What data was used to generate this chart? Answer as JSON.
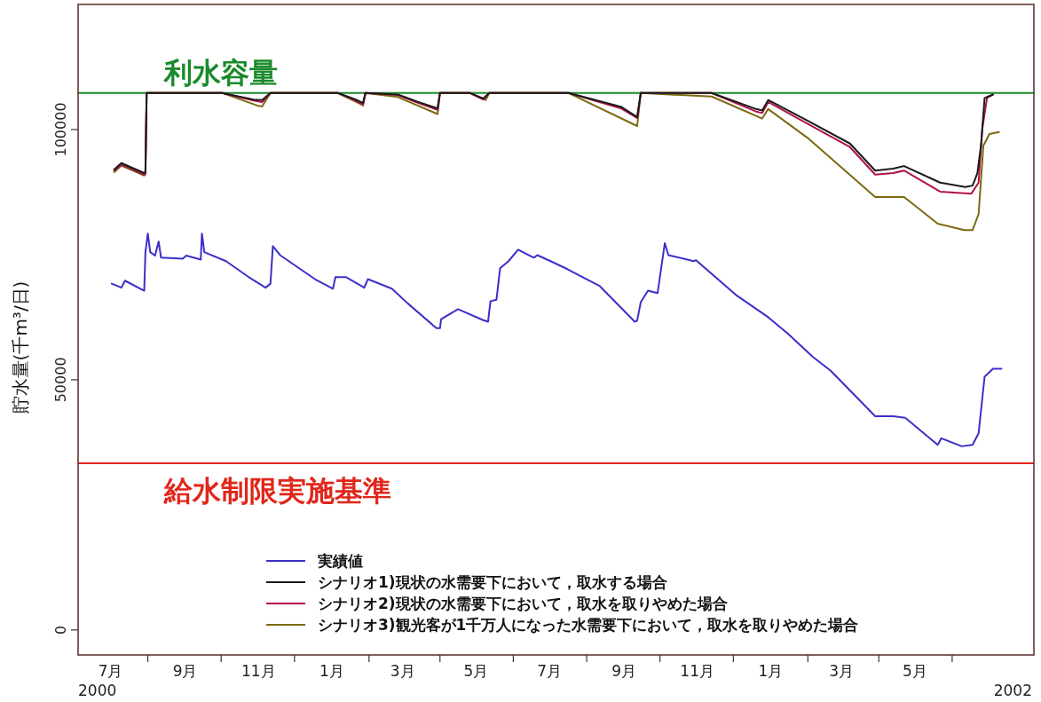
{
  "chart_data": {
    "type": "line",
    "ylabel": "貯水量(千m³/日)",
    "xlim": [
      "2000-06-04",
      "2002-08-08"
    ],
    "ylim": [
      -5000,
      125000
    ],
    "yticks": [
      0,
      50000,
      100000
    ],
    "annotations": [
      "2000",
      "2002"
    ],
    "xticks": [
      {
        "value": "2000-07-01",
        "label": "7月"
      },
      {
        "value": "2000-08-01",
        "label": null
      },
      {
        "value": "2000-09-01",
        "label": "9月"
      },
      {
        "value": "2000-10-01",
        "label": null
      },
      {
        "value": "2000-11-01",
        "label": "11月"
      },
      {
        "value": "2000-12-01",
        "label": null
      },
      {
        "value": "2001-01-01",
        "label": "1月"
      },
      {
        "value": "2001-02-01",
        "label": null
      },
      {
        "value": "2001-03-01",
        "label": "3月"
      },
      {
        "value": "2001-04-01",
        "label": null
      },
      {
        "value": "2001-05-01",
        "label": "5月"
      },
      {
        "value": "2001-06-01",
        "label": null
      },
      {
        "value": "2001-07-01",
        "label": "7月"
      },
      {
        "value": "2001-08-01",
        "label": null
      },
      {
        "value": "2001-09-01",
        "label": "9月"
      },
      {
        "value": "2001-10-01",
        "label": null
      },
      {
        "value": "2001-11-01",
        "label": "11月"
      },
      {
        "value": "2001-12-01",
        "label": null
      },
      {
        "value": "2002-01-01",
        "label": "1月"
      },
      {
        "value": "2002-02-01",
        "label": null
      },
      {
        "value": "2002-03-01",
        "label": "3月"
      },
      {
        "value": "2002-04-01",
        "label": null
      },
      {
        "value": "2002-05-01",
        "label": "5月"
      },
      {
        "value": "2002-06-01",
        "label": null
      }
    ],
    "grid": false,
    "legend": "bottom",
    "line_style": "solid",
    "ref_lines": [
      {
        "axis": "y",
        "value": 107300,
        "label": "利水容量",
        "color": "#1a8a2a"
      },
      {
        "axis": "y",
        "value": 33300,
        "label": "給水制限実施基準",
        "color": "#e0261a"
      }
    ],
    "series": [
      {
        "name": "実績値",
        "color": "#3b2fc9",
        "x": [
          "2000-07-02",
          "2000-07-10",
          "2000-07-13",
          "2000-07-29",
          "2000-07-30",
          "2000-08-01",
          "2000-08-03",
          "2000-08-07",
          "2000-08-10",
          "2000-08-12",
          "2000-08-30",
          "2000-09-02",
          "2000-09-14",
          "2000-09-15",
          "2000-09-17",
          "2000-10-05",
          "2000-10-24",
          "2000-11-07",
          "2000-11-11",
          "2000-11-13",
          "2000-11-19",
          "2000-12-18",
          "2001-01-02",
          "2001-01-04",
          "2001-01-13",
          "2001-01-28",
          "2001-01-31",
          "2001-02-20",
          "2001-03-05",
          "2001-03-29",
          "2001-04-01",
          "2001-04-02",
          "2001-04-16",
          "2001-05-07",
          "2001-05-11",
          "2001-05-13",
          "2001-05-18",
          "2001-05-21",
          "2001-05-28",
          "2001-06-05",
          "2001-06-18",
          "2001-06-21",
          "2001-07-02",
          "2001-07-16",
          "2001-07-27",
          "2001-08-12",
          "2001-09-10",
          "2001-09-12",
          "2001-09-15",
          "2001-09-21",
          "2001-09-29",
          "2001-10-05",
          "2001-10-08",
          "2001-10-29",
          "2001-10-31",
          "2001-12-04",
          "2001-12-30",
          "2002-01-15",
          "2002-02-05",
          "2002-02-20",
          "2002-03-29",
          "2002-04-13",
          "2002-04-23",
          "2002-05-20",
          "2002-05-23",
          "2002-06-09",
          "2002-06-18",
          "2002-06-23",
          "2002-06-28",
          "2002-07-05",
          "2002-07-12"
        ],
        "values": [
          69200,
          68400,
          69800,
          67800,
          75500,
          79200,
          75500,
          74800,
          77600,
          74400,
          74200,
          74800,
          74000,
          79200,
          75500,
          73700,
          70500,
          68400,
          69200,
          76700,
          74900,
          70100,
          68200,
          70500,
          70500,
          68400,
          70100,
          68200,
          65300,
          60300,
          60300,
          62100,
          64100,
          61900,
          61600,
          65700,
          66000,
          72300,
          73700,
          76000,
          74400,
          74900,
          73700,
          72100,
          70700,
          68700,
          61600,
          61800,
          65500,
          67800,
          67300,
          77300,
          74900,
          73700,
          73900,
          66800,
          62500,
          59300,
          54600,
          51800,
          42700,
          42700,
          42400,
          37000,
          38300,
          36700,
          37000,
          39300,
          50600,
          52200,
          52200
        ]
      },
      {
        "name": "シナリオ1)現状の水需要下において，取水する場合",
        "color": "#1a1a1a",
        "x": [
          "2000-07-04",
          "2000-07-10",
          "2000-07-29",
          "2000-07-30",
          "2000-07-31",
          "2000-10-02",
          "2000-10-28",
          "2000-11-04",
          "2000-11-11",
          "2001-01-06",
          "2001-01-21",
          "2001-01-27",
          "2001-01-29",
          "2001-02-25",
          "2001-03-13",
          "2001-03-29",
          "2001-03-30",
          "2001-04-01",
          "2001-04-26",
          "2001-05-07",
          "2001-05-12",
          "2001-07-17",
          "2001-08-30",
          "2001-09-12",
          "2001-09-15",
          "2001-11-13",
          "2001-12-20",
          "2001-12-25",
          "2001-12-30",
          "2002-02-02",
          "2002-03-08",
          "2002-03-29",
          "2002-04-13",
          "2002-04-22",
          "2002-05-22",
          "2002-06-12",
          "2002-06-18",
          "2002-06-22",
          "2002-06-25",
          "2002-06-28",
          "2002-07-05"
        ],
        "values": [
          92000,
          93300,
          91300,
          91500,
          107300,
          107300,
          106000,
          105900,
          107300,
          107300,
          106000,
          105300,
          107300,
          107000,
          105600,
          104300,
          104300,
          107300,
          107300,
          106200,
          107300,
          107300,
          104500,
          102500,
          107300,
          107300,
          104100,
          103800,
          105900,
          101600,
          97200,
          91800,
          92200,
          92700,
          89400,
          88500,
          88800,
          91300,
          96800,
          106300,
          107000
        ]
      },
      {
        "name": "シナリオ2)現状の水需要下において，取水を取りやめた場合",
        "color": "#b0124a",
        "x": [
          "2000-07-04",
          "2000-07-10",
          "2000-07-29",
          "2000-07-30",
          "2000-07-31",
          "2000-10-02",
          "2000-10-28",
          "2000-11-04",
          "2000-11-11",
          "2001-01-06",
          "2001-01-21",
          "2001-01-27",
          "2001-01-29",
          "2001-02-25",
          "2001-03-13",
          "2001-03-29",
          "2001-03-30",
          "2001-04-01",
          "2001-04-26",
          "2001-05-07",
          "2001-05-12",
          "2001-07-17",
          "2001-08-30",
          "2001-09-12",
          "2001-09-15",
          "2001-11-13",
          "2001-12-20",
          "2001-12-25",
          "2001-12-30",
          "2002-02-02",
          "2002-03-08",
          "2002-03-29",
          "2002-04-13",
          "2002-04-22",
          "2002-05-22",
          "2002-06-17",
          "2002-06-23",
          "2002-06-26",
          "2002-06-30",
          "2002-07-05"
        ],
        "values": [
          91800,
          93000,
          91000,
          91200,
          107300,
          107300,
          105800,
          105500,
          107300,
          107300,
          105800,
          105000,
          107300,
          106900,
          105400,
          104000,
          104000,
          107300,
          107300,
          106000,
          107300,
          107300,
          104200,
          102300,
          107300,
          107300,
          103600,
          103300,
          105500,
          101000,
          96500,
          91000,
          91300,
          91800,
          87600,
          87200,
          89400,
          100000,
          106300,
          107000
        ]
      },
      {
        "name": "シナリオ3)観光客が1千万人になった水需要下において，取水を取りやめた場合",
        "color": "#7a6a10",
        "x": [
          "2000-07-04",
          "2000-07-10",
          "2000-07-29",
          "2000-07-30",
          "2000-07-31",
          "2000-10-02",
          "2000-10-31",
          "2000-11-04",
          "2000-11-11",
          "2001-01-06",
          "2001-01-24",
          "2001-01-27",
          "2001-01-29",
          "2001-02-25",
          "2001-03-30",
          "2001-04-01",
          "2001-04-26",
          "2001-05-09",
          "2001-05-12",
          "2001-07-17",
          "2001-09-12",
          "2001-09-15",
          "2001-11-13",
          "2001-12-25",
          "2001-12-30",
          "2002-02-02",
          "2002-03-29",
          "2002-04-22",
          "2002-05-20",
          "2002-06-11",
          "2002-06-18",
          "2002-06-23",
          "2002-06-27",
          "2002-07-02",
          "2002-07-10"
        ],
        "values": [
          91500,
          92800,
          90800,
          91000,
          107300,
          107300,
          104800,
          104600,
          107300,
          107300,
          105200,
          104800,
          107300,
          106500,
          103100,
          107300,
          107300,
          105900,
          107300,
          107300,
          100700,
          107300,
          106600,
          102200,
          104100,
          98100,
          86500,
          86500,
          81200,
          79900,
          79900,
          83100,
          96800,
          99100,
          99500
        ]
      }
    ]
  }
}
